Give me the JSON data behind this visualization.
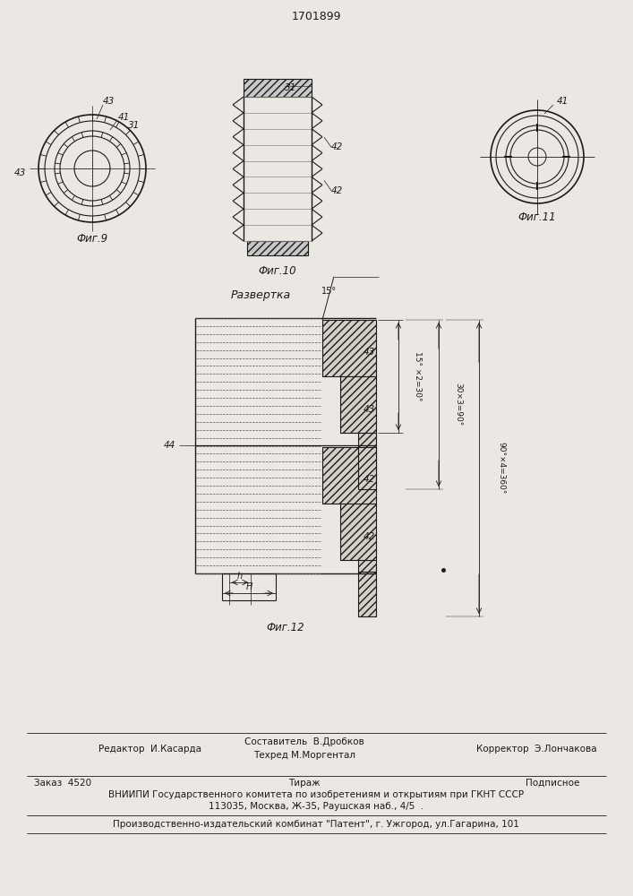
{
  "page_title": "1701899",
  "bg_color": "#ebe8e3",
  "line_color": "#1a1a1a",
  "fig9_label": "Фиг.9",
  "fig10_label": "Фиг.10",
  "fig11_label": "Фиг.11",
  "fig12_label": "Фиг.12",
  "razvyortka_label": "Развертка",
  "angle_label1": "15°",
  "angle_label2": "15° ×2=30°",
  "angle_label3": "30×3=90°",
  "angle_label4": "90°×4=360°",
  "footer_line1_left": "Редактор  И.Касарда",
  "footer_line1_c1": "Составитель  В.Дробков",
  "footer_line1_c2": "Техред М.Моргентал",
  "footer_line1_right": "Корректор  Э.Лончакова",
  "footer_line2_left": "Заказ  4520",
  "footer_line2_center": "Тираж",
  "footer_line2_right": "Подписное",
  "footer_line3": "ВНИИПИ Государственного комитета по изобретениям и открытиям при ГКНТ СССР",
  "footer_line4": "113035, Москва, Ж-35, Раушская наб., 4/5  .",
  "footer_line5": "Производственно-издательский комбинат \"Патент\", г. Ужгород, ул.Гагарина, 101"
}
